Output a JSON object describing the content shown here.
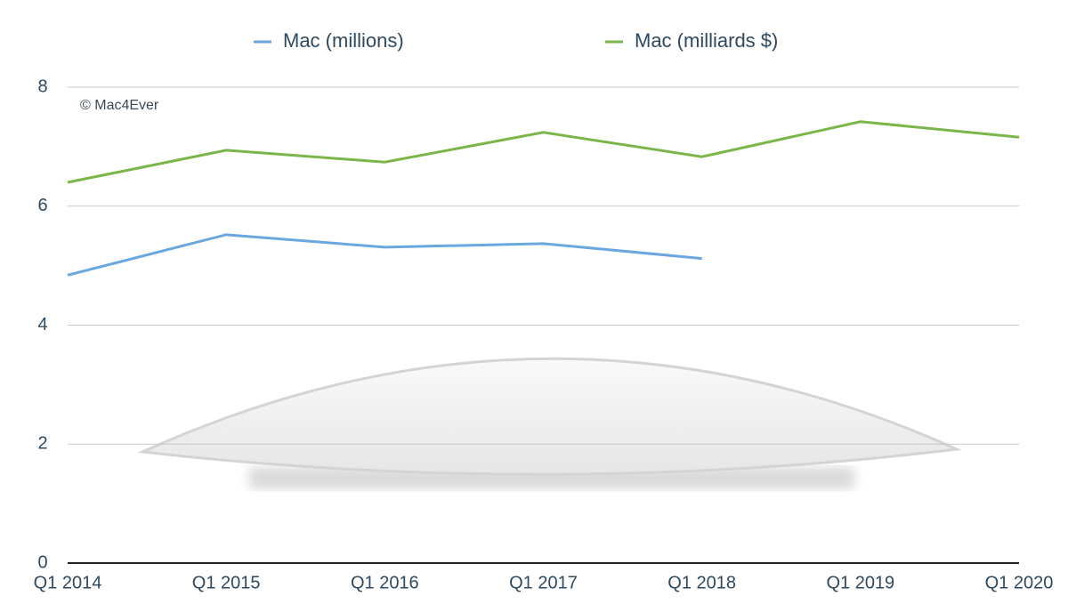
{
  "chart_data": {
    "type": "line",
    "annotation": "© Mac4Ever",
    "categories": [
      "Q1 2014",
      "Q1 2015",
      "Q1 2016",
      "Q1 2017",
      "Q1 2018",
      "Q1 2019",
      "Q1 2020"
    ],
    "series": [
      {
        "name": "Mac (millions)",
        "color": "#6aa6e0",
        "values": [
          4.84,
          5.52,
          5.31,
          5.37,
          5.12,
          null,
          null
        ]
      },
      {
        "name": "Mac (milliards $)",
        "color": "#7ab648",
        "values": [
          6.4,
          6.94,
          6.74,
          7.24,
          6.83,
          7.42,
          7.16
        ]
      }
    ],
    "ylim": [
      0,
      8
    ],
    "yticks": [
      0,
      2,
      4,
      6,
      8
    ],
    "grid": true
  }
}
